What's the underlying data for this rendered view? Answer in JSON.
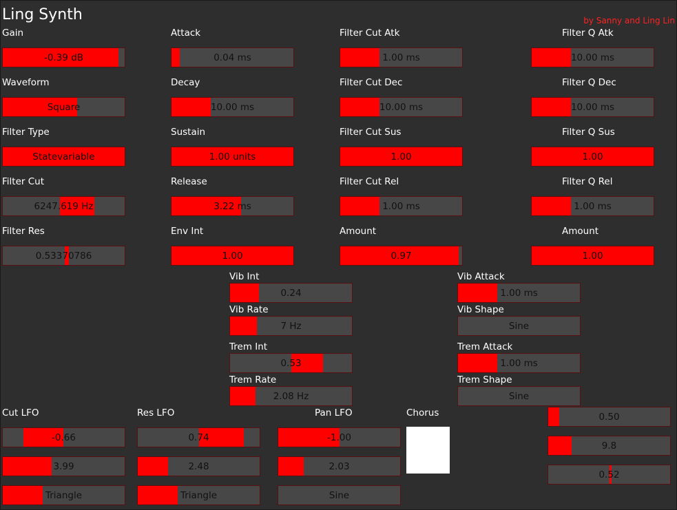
{
  "app": {
    "title": "Ling Synth",
    "credit": "by Sanny and Ling Lin"
  },
  "sections": {
    "gain": "Gain",
    "waveform": "Waveform",
    "filter_type": "Filter Type",
    "filter_cut": "Filter Cut",
    "filter_res": "Filter Res",
    "attack": "Attack",
    "decay": "Decay",
    "sustain": "Sustain",
    "release": "Release",
    "env_int": "Env Int",
    "filter_cut_atk": "Filter Cut Atk",
    "filter_cut_dec": "Filter Cut Dec",
    "filter_cut_sus": "Filter Cut Sus",
    "filter_cut_rel": "Filter Cut Rel",
    "filter_cut_amount": "Amount",
    "filter_q_atk": "Filter Q Atk",
    "filter_q_dec": "Filter Q Dec",
    "filter_q_sus": "Filter Q Sus",
    "filter_q_rel": "Filter Q Rel",
    "filter_q_amount": "Amount",
    "vib_int": "Vib Int",
    "vib_rate": "Vib Rate",
    "trem_int": "Trem Int",
    "trem_rate": "Trem Rate",
    "vib_attack": "Vib Attack",
    "vib_shape": "Vib Shape",
    "trem_attack": "Trem Attack",
    "trem_shape": "Trem Shape",
    "cut_lfo": "Cut LFO",
    "res_lfo": "Res LFO",
    "pan_lfo": "Pan LFO",
    "chorus": "Chorus"
  },
  "controls": {
    "gain": {
      "value": "-0.39 dB",
      "level": 0.95
    },
    "waveform": {
      "value": "Square",
      "level": 0.61
    },
    "filter_type": {
      "value": "Statevariable",
      "level": 1.0
    },
    "filter_cut": {
      "value": "6247.619 Hz",
      "level_from": 0.47,
      "level_to": 0.75
    },
    "filter_res": {
      "value": "0.53370786",
      "level_from": 0.51,
      "level_to": 0.54
    },
    "attack": {
      "value": "0.04 ms",
      "level": 0.07
    },
    "decay": {
      "value": "10.00 ms",
      "level": 0.32
    },
    "sustain": {
      "value": "1.00 units",
      "level": 1.0
    },
    "release": {
      "value": "3.22 ms",
      "level": 0.57
    },
    "env_int": {
      "value": "1.00",
      "level": 1.0
    },
    "filter_cut_atk": {
      "value": "1.00 ms",
      "level": 0.32
    },
    "filter_cut_dec": {
      "value": "10.00 ms",
      "level": 0.32
    },
    "filter_cut_sus": {
      "value": "1.00",
      "level": 1.0
    },
    "filter_cut_rel": {
      "value": "1.00 ms",
      "level": 0.32
    },
    "filter_cut_amount": {
      "value": "0.97",
      "level": 0.97
    },
    "filter_q_atk": {
      "value": "10.00 ms",
      "level": 0.32
    },
    "filter_q_dec": {
      "value": "10.00 ms",
      "level": 0.32
    },
    "filter_q_sus": {
      "value": "1.00",
      "level": 1.0
    },
    "filter_q_rel": {
      "value": "1.00 ms",
      "level": 0.32
    },
    "filter_q_amount": {
      "value": "1.00",
      "level": 1.0
    },
    "vib_int": {
      "value": "0.24",
      "level": 0.24
    },
    "vib_rate": {
      "value": "7 Hz",
      "level": 0.22
    },
    "trem_int": {
      "value": "0.53",
      "level_from": 0.5,
      "level_to": 0.76
    },
    "trem_rate": {
      "value": "2.08 Hz",
      "level": 0.21
    },
    "vib_attack": {
      "value": "1.00 ms",
      "level": 0.32
    },
    "vib_shape": {
      "value": "Sine",
      "level": 0.0
    },
    "trem_attack": {
      "value": "1.00 ms",
      "level": 0.32
    },
    "trem_shape": {
      "value": "Sine",
      "level": 0.0
    },
    "cut_lfo_amount": {
      "value": "-0.66",
      "level_from": 0.17,
      "level_to": 0.5
    },
    "cut_lfo_rate": {
      "value": "3.99",
      "level": 0.4
    },
    "cut_lfo_shape": {
      "value": "Triangle",
      "level": 0.33
    },
    "res_lfo_amount": {
      "value": "0.74",
      "level_from": 0.5,
      "level_to": 0.87
    },
    "res_lfo_rate": {
      "value": "2.48",
      "level": 0.25
    },
    "res_lfo_shape": {
      "value": "Triangle",
      "level": 0.33
    },
    "pan_lfo_amount": {
      "value": "-1.00",
      "level_from": 0.0,
      "level_to": 0.5
    },
    "pan_lfo_rate": {
      "value": "2.03",
      "level": 0.21
    },
    "pan_lfo_shape": {
      "value": "Sine",
      "level": 0.0
    },
    "chorus_1": {
      "value": "0.50",
      "level": 0.09
    },
    "chorus_2": {
      "value": "9.8",
      "level": 0.19
    },
    "chorus_3": {
      "value": "0.52",
      "level_from": 0.5,
      "level_to": 0.52
    }
  },
  "colors": {
    "background": "#2e2e2e",
    "fill": "#ff0000",
    "track": "#474747",
    "credit": "#ff2222"
  }
}
